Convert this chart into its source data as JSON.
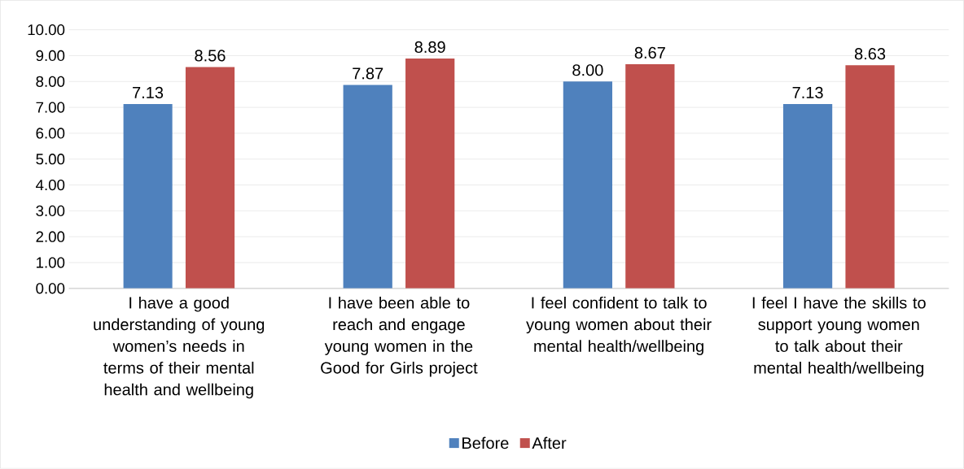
{
  "chart_data": {
    "type": "bar",
    "categories": [
      "I have a good understanding of young women’s needs in terms of their mental health and wellbeing",
      "I have been able to reach and engage young women in the Good for Girls project",
      "I feel confident to talk to young women about their mental health/wellbeing",
      "I feel I have the skills to support young women to talk about their mental health/wellbeing"
    ],
    "series": [
      {
        "name": "Before",
        "color": "#4f81bd",
        "values": [
          7.13,
          7.87,
          8.0,
          7.13
        ],
        "value_labels": [
          "7.13",
          "7.87",
          "8.00",
          "7.13"
        ]
      },
      {
        "name": "After",
        "color": "#c0504d",
        "values": [
          8.56,
          8.89,
          8.67,
          8.63
        ],
        "value_labels": [
          "8.56",
          "8.89",
          "8.67",
          "8.63"
        ]
      }
    ],
    "ylim": [
      0,
      10
    ],
    "yticks": [
      {
        "value": 0,
        "label": "0.00"
      },
      {
        "value": 1,
        "label": "1.00"
      },
      {
        "value": 2,
        "label": "2.00"
      },
      {
        "value": 3,
        "label": "3.00"
      },
      {
        "value": 4,
        "label": "4.00"
      },
      {
        "value": 5,
        "label": "5.00"
      },
      {
        "value": 6,
        "label": "6.00"
      },
      {
        "value": 7,
        "label": "7.00"
      },
      {
        "value": 8,
        "label": "8.00"
      },
      {
        "value": 9,
        "label": "9.00"
      },
      {
        "value": 10,
        "label": "10.00"
      }
    ],
    "grid": "y",
    "legend": "bottom"
  }
}
